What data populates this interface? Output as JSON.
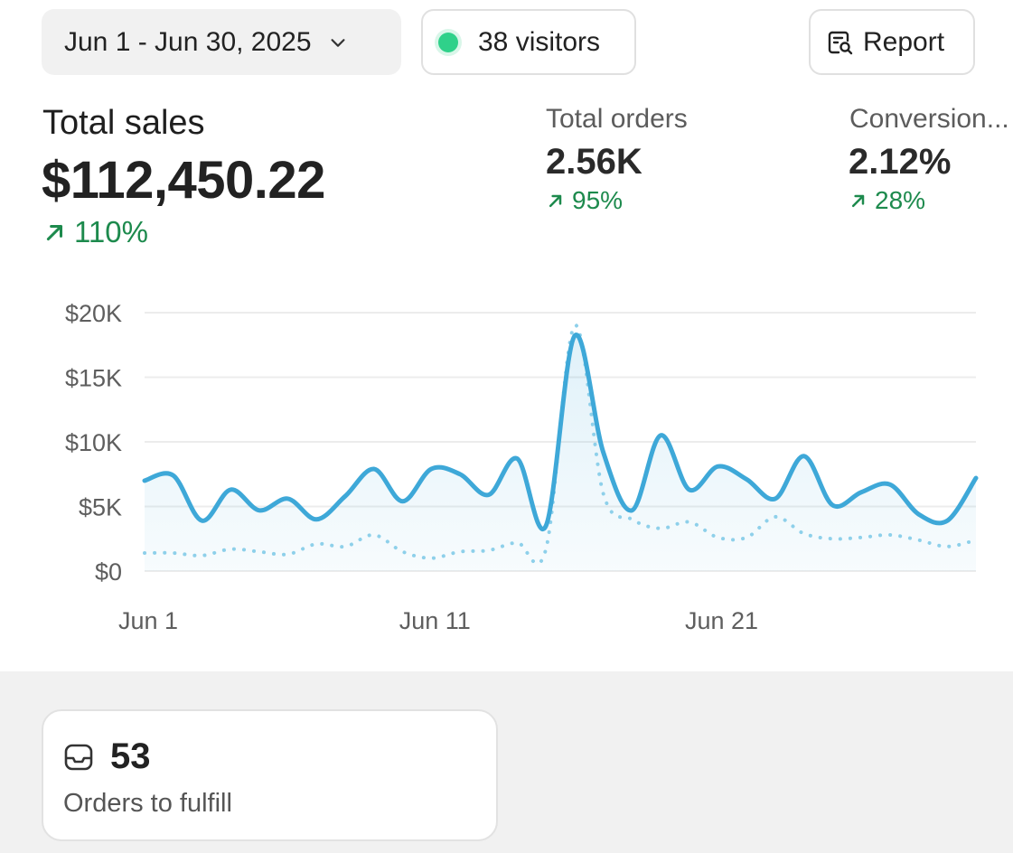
{
  "toolbar": {
    "date_range": "Jun 1 - Jun 30, 2025",
    "visitors_label": "38 visitors",
    "report_label": "Report",
    "colors": {
      "live_dot": "#2fd18a"
    }
  },
  "metrics": {
    "total_sales": {
      "label": "Total sales",
      "value": "$112,450.22",
      "delta": "110%"
    },
    "total_orders": {
      "label": "Total orders",
      "value": "2.56K",
      "delta": "95%"
    },
    "conversion": {
      "label": "Conversion...",
      "value": "2.12%",
      "delta": "28%"
    },
    "colors": {
      "positive": "#1d8a4d"
    }
  },
  "chart_data": {
    "type": "line",
    "title": "",
    "xlabel": "",
    "ylabel": "",
    "x": [
      "Jun 1",
      "Jun 2",
      "Jun 3",
      "Jun 4",
      "Jun 5",
      "Jun 6",
      "Jun 7",
      "Jun 8",
      "Jun 9",
      "Jun 10",
      "Jun 11",
      "Jun 12",
      "Jun 13",
      "Jun 14",
      "Jun 15",
      "Jun 16",
      "Jun 17",
      "Jun 18",
      "Jun 19",
      "Jun 20",
      "Jun 21",
      "Jun 22",
      "Jun 23",
      "Jun 24",
      "Jun 25",
      "Jun 26",
      "Jun 27",
      "Jun 28",
      "Jun 29",
      "Jun 30"
    ],
    "x_ticks": [
      "Jun 1",
      "Jun 11",
      "Jun 21"
    ],
    "y_ticks": [
      "$0",
      "$5K",
      "$10K",
      "$15K",
      "$20K"
    ],
    "ylim": [
      0,
      20000
    ],
    "grid": true,
    "series": [
      {
        "style": "solid",
        "color": "#3ea8d8",
        "values": [
          7000,
          7400,
          3900,
          6300,
          4700,
          5600,
          4000,
          5800,
          7900,
          5400,
          7900,
          7500,
          5900,
          8700,
          3500,
          18200,
          9200,
          4700,
          10500,
          6300,
          8100,
          7100,
          5600,
          8900,
          5100,
          6100,
          6700,
          4400,
          3900,
          7200
        ]
      },
      {
        "style": "dotted",
        "color": "#8ed0ea",
        "values": [
          1400,
          1400,
          1200,
          1700,
          1500,
          1300,
          2100,
          1900,
          2800,
          1500,
          1000,
          1500,
          1600,
          2200,
          1700,
          19000,
          6000,
          4000,
          3300,
          3800,
          2600,
          2600,
          4200,
          2900,
          2500,
          2600,
          2800,
          2400,
          1900,
          2400
        ]
      }
    ]
  },
  "fulfill_card": {
    "count": "53",
    "label": "Orders to fulfill"
  }
}
